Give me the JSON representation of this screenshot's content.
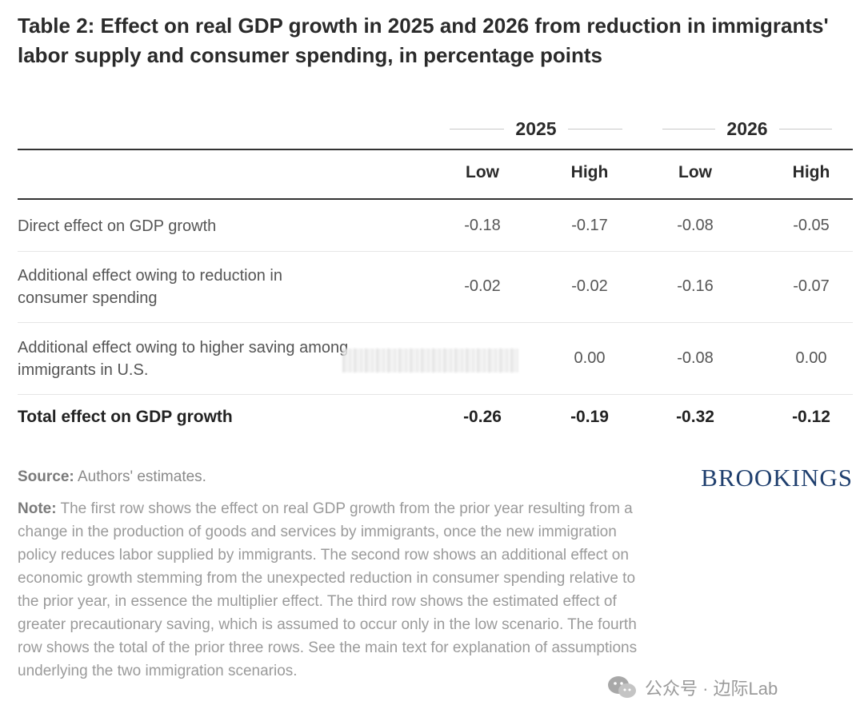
{
  "title": "Table 2: Effect on real GDP growth in 2025 and 2026 from reduction in immigrants' labor supply and consumer spending, in percentage points",
  "table": {
    "year_groups": [
      "2025",
      "2026"
    ],
    "subheaders": [
      "Low",
      "High",
      "Low",
      "High"
    ],
    "rows": [
      {
        "label": "Direct effect on GDP growth",
        "values": [
          "-0.18",
          "-0.17",
          "-0.08",
          "-0.05"
        ]
      },
      {
        "label": "Additional effect owing to reduction in consumer spending",
        "values": [
          "-0.02",
          "-0.02",
          "-0.16",
          "-0.07"
        ]
      },
      {
        "label": "Additional effect owing to higher saving among immigrants in U.S.",
        "values": [
          "",
          "0.00",
          "-0.08",
          "0.00"
        ]
      }
    ],
    "total": {
      "label": "Total effect on GDP growth",
      "values": [
        "-0.26",
        "-0.19",
        "-0.32",
        "-0.12"
      ]
    }
  },
  "source": {
    "label": "Source:",
    "text": " Authors' estimates."
  },
  "note": {
    "label": "Note:",
    "text": " The first row shows the effect on real GDP growth from the prior year resulting from a change in the production of goods and services by immigrants, once the new immigration policy reduces labor supplied by immigrants. The second row shows an additional effect on economic growth stemming from the unexpected reduction in consumer spending relative to the prior year, in essence the multiplier effect. The third row shows the estimated effect of greater precautionary saving, which is assumed to occur only in the low scenario. The fourth row shows the total of the prior three rows. See the main text for explanation of assumptions underlying the two immigration scenarios."
  },
  "brand": "BROOKINGS",
  "watermark": "公众号 · 边际Lab",
  "colors": {
    "brand": "#1f3f6e",
    "text": "#222222",
    "muted": "#9a9a9a"
  }
}
